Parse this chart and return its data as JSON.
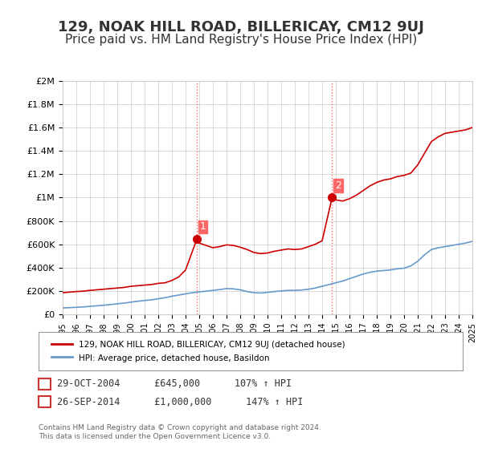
{
  "title": "129, NOAK HILL ROAD, BILLERICAY, CM12 9UJ",
  "subtitle": "Price paid vs. HM Land Registry's House Price Index (HPI)",
  "title_fontsize": 13,
  "subtitle_fontsize": 11,
  "background_color": "#ffffff",
  "plot_bg_color": "#ffffff",
  "grid_color": "#cccccc",
  "red_line_color": "#cc0000",
  "blue_line_color": "#6699cc",
  "point1_year": 2004.83,
  "point1_value": 645000,
  "point2_year": 2014.73,
  "point2_value": 1000000,
  "vline_color": "#ff6666",
  "vline_style": ":",
  "xmin": 1995,
  "xmax": 2025,
  "ymin": 0,
  "ymax": 2000000,
  "yticks": [
    0,
    200000,
    400000,
    600000,
    800000,
    1000000,
    1200000,
    1400000,
    1600000,
    1800000,
    2000000
  ],
  "ytick_labels": [
    "£0",
    "£200K",
    "£400K",
    "£600K",
    "£800K",
    "£1M",
    "£1.2M",
    "£1.4M",
    "£1.6M",
    "£1.8M",
    "£2M"
  ],
  "xticks": [
    1995,
    1996,
    1997,
    1998,
    1999,
    2000,
    2001,
    2002,
    2003,
    2004,
    2005,
    2006,
    2007,
    2008,
    2009,
    2010,
    2011,
    2012,
    2013,
    2014,
    2015,
    2016,
    2017,
    2018,
    2019,
    2020,
    2021,
    2022,
    2023,
    2024,
    2025
  ],
  "legend_label_red": "129, NOAK HILL ROAD, BILLERICAY, CM12 9UJ (detached house)",
  "legend_label_blue": "HPI: Average price, detached house, Basildon",
  "annotation1_label": "1",
  "annotation1_text": "29-OCT-2004      £645,000      107% ↑ HPI",
  "annotation2_label": "2",
  "annotation2_text": "26-SEP-2014      £1,000,000      147% ↑ HPI",
  "footer": "Contains HM Land Registry data © Crown copyright and database right 2024.\nThis data is licensed under the Open Government Licence v3.0.",
  "red_x": [
    1995.0,
    1995.5,
    1996.0,
    1996.5,
    1997.0,
    1997.5,
    1998.0,
    1998.5,
    1999.0,
    1999.5,
    2000.0,
    2000.5,
    2001.0,
    2001.5,
    2002.0,
    2002.5,
    2003.0,
    2003.5,
    2004.0,
    2004.83,
    2005.0,
    2005.5,
    2006.0,
    2006.5,
    2007.0,
    2007.5,
    2008.0,
    2008.5,
    2009.0,
    2009.5,
    2010.0,
    2010.5,
    2011.0,
    2011.5,
    2012.0,
    2012.5,
    2013.0,
    2013.5,
    2014.0,
    2014.73,
    2015.0,
    2015.5,
    2016.0,
    2016.5,
    2017.0,
    2017.5,
    2018.0,
    2018.5,
    2019.0,
    2019.5,
    2020.0,
    2020.5,
    2021.0,
    2021.5,
    2022.0,
    2022.5,
    2023.0,
    2023.5,
    2024.0,
    2024.5,
    2025.0
  ],
  "red_y": [
    185000,
    190000,
    195000,
    198000,
    205000,
    210000,
    215000,
    220000,
    225000,
    230000,
    240000,
    245000,
    250000,
    255000,
    265000,
    270000,
    290000,
    320000,
    380000,
    645000,
    610000,
    590000,
    570000,
    580000,
    595000,
    590000,
    575000,
    555000,
    530000,
    520000,
    525000,
    540000,
    550000,
    560000,
    555000,
    560000,
    580000,
    600000,
    630000,
    1000000,
    980000,
    970000,
    990000,
    1020000,
    1060000,
    1100000,
    1130000,
    1150000,
    1160000,
    1180000,
    1190000,
    1210000,
    1280000,
    1380000,
    1480000,
    1520000,
    1550000,
    1560000,
    1570000,
    1580000,
    1600000
  ],
  "blue_x": [
    1995.0,
    1995.5,
    1996.0,
    1996.5,
    1997.0,
    1997.5,
    1998.0,
    1998.5,
    1999.0,
    1999.5,
    2000.0,
    2000.5,
    2001.0,
    2001.5,
    2002.0,
    2002.5,
    2003.0,
    2003.5,
    2004.0,
    2004.5,
    2005.0,
    2005.5,
    2006.0,
    2006.5,
    2007.0,
    2007.5,
    2008.0,
    2008.5,
    2009.0,
    2009.5,
    2010.0,
    2010.5,
    2011.0,
    2011.5,
    2012.0,
    2012.5,
    2013.0,
    2013.5,
    2014.0,
    2014.5,
    2015.0,
    2015.5,
    2016.0,
    2016.5,
    2017.0,
    2017.5,
    2018.0,
    2018.5,
    2019.0,
    2019.5,
    2020.0,
    2020.5,
    2021.0,
    2021.5,
    2022.0,
    2022.5,
    2023.0,
    2023.5,
    2024.0,
    2024.5,
    2025.0
  ],
  "blue_y": [
    55000,
    57000,
    60000,
    63000,
    68000,
    73000,
    78000,
    83000,
    90000,
    96000,
    104000,
    112000,
    118000,
    124000,
    133000,
    142000,
    155000,
    165000,
    175000,
    185000,
    192000,
    198000,
    205000,
    212000,
    220000,
    218000,
    210000,
    195000,
    185000,
    182000,
    188000,
    195000,
    200000,
    205000,
    205000,
    208000,
    215000,
    225000,
    240000,
    255000,
    270000,
    285000,
    305000,
    325000,
    345000,
    360000,
    370000,
    375000,
    380000,
    390000,
    395000,
    415000,
    455000,
    510000,
    555000,
    570000,
    580000,
    590000,
    600000,
    610000,
    625000
  ]
}
